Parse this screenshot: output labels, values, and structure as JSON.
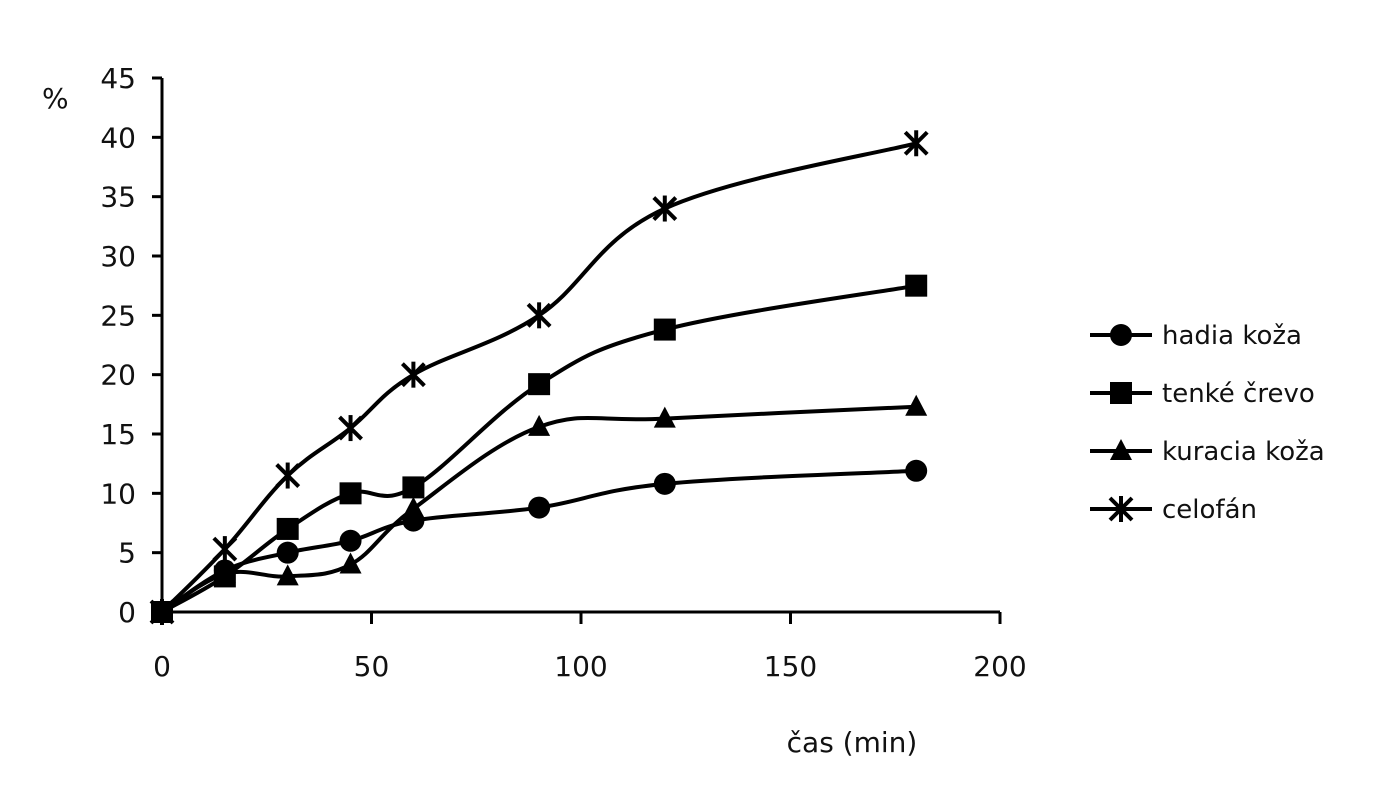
{
  "chart_data": {
    "type": "line",
    "ylabel": "%",
    "xlabel": "čas (min)",
    "xlim": [
      0,
      200
    ],
    "ylim": [
      0,
      45
    ],
    "xticks": [
      0,
      50,
      100,
      150,
      200
    ],
    "yticks": [
      0,
      5,
      10,
      15,
      20,
      25,
      30,
      35,
      40,
      45
    ],
    "grid": false,
    "legend_position": "right",
    "x": [
      0,
      15,
      30,
      45,
      60,
      90,
      120,
      180
    ],
    "series": [
      {
        "name": "hadia koža",
        "marker": "circle",
        "values": [
          0,
          3.5,
          5,
          6,
          7.7,
          8.8,
          10.8,
          11.9
        ]
      },
      {
        "name": "tenké črevo",
        "marker": "square",
        "values": [
          0,
          3,
          7,
          10,
          10.5,
          19.2,
          23.8,
          27.5
        ]
      },
      {
        "name": "kuracia koža",
        "marker": "triangle",
        "values": [
          0,
          3.2,
          3,
          4,
          8.7,
          15.6,
          16.3,
          17.3
        ]
      },
      {
        "name": "celofán",
        "marker": "star",
        "values": [
          0,
          5.3,
          11.5,
          15.5,
          20,
          25,
          34,
          39.5
        ]
      }
    ]
  }
}
